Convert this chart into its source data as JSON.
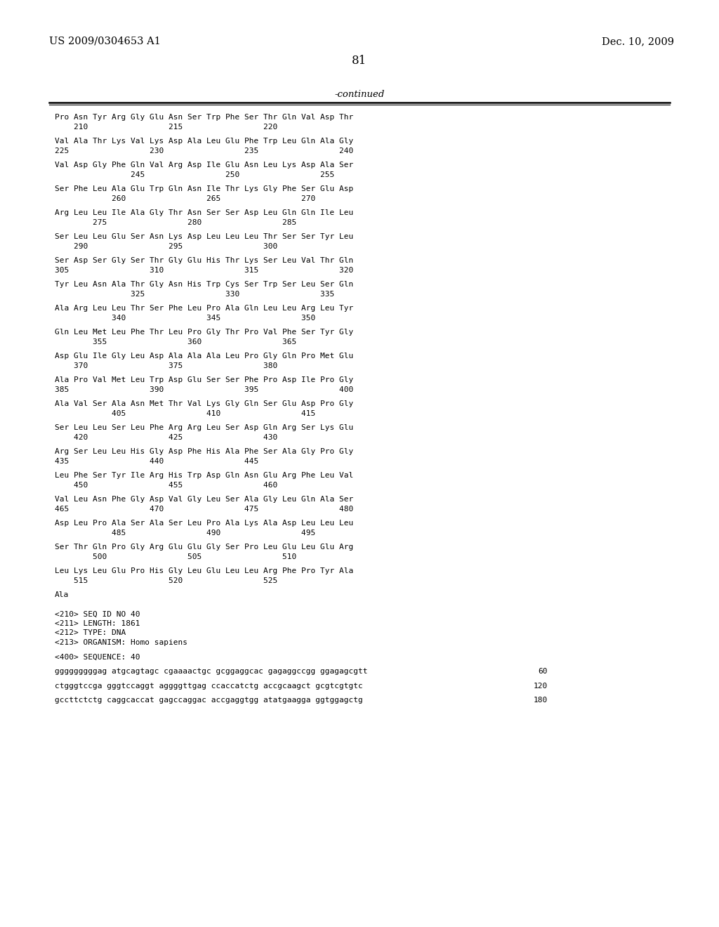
{
  "background_color": "#ffffff",
  "header_left": "US 2009/0304653 A1",
  "header_right": "Dec. 10, 2009",
  "page_number": "81",
  "continued_label": "-continued",
  "body_lines": [
    "Pro Asn Tyr Arg Gly Glu Asn Ser Trp Phe Ser Thr Gln Val Asp Thr",
    "    210                 215                 220",
    "",
    "Val Ala Thr Lys Val Lys Asp Ala Leu Glu Phe Trp Leu Gln Ala Gly",
    "225                 230                 235                 240",
    "",
    "Val Asp Gly Phe Gln Val Arg Asp Ile Glu Asn Leu Lys Asp Ala Ser",
    "                245                 250                 255",
    "",
    "Ser Phe Leu Ala Glu Trp Gln Asn Ile Thr Lys Gly Phe Ser Glu Asp",
    "            260                 265                 270",
    "",
    "Arg Leu Leu Ile Ala Gly Thr Asn Ser Ser Asp Leu Gln Gln Ile Leu",
    "        275                 280                 285",
    "",
    "Ser Leu Leu Glu Ser Asn Lys Asp Leu Leu Leu Thr Ser Ser Tyr Leu",
    "    290                 295                 300",
    "",
    "Ser Asp Ser Gly Ser Thr Gly Glu His Thr Lys Ser Leu Val Thr Gln",
    "305                 310                 315                 320",
    "",
    "Tyr Leu Asn Ala Thr Gly Asn His Trp Cys Ser Trp Ser Leu Ser Gln",
    "                325                 330                 335",
    "",
    "Ala Arg Leu Leu Thr Ser Phe Leu Pro Ala Gln Leu Leu Arg Leu Tyr",
    "            340                 345                 350",
    "",
    "Gln Leu Met Leu Phe Thr Leu Pro Gly Thr Pro Val Phe Ser Tyr Gly",
    "        355                 360                 365",
    "",
    "Asp Glu Ile Gly Leu Asp Ala Ala Ala Leu Pro Gly Gln Pro Met Glu",
    "    370                 375                 380",
    "",
    "Ala Pro Val Met Leu Trp Asp Glu Ser Ser Phe Pro Asp Ile Pro Gly",
    "385                 390                 395                 400",
    "",
    "Ala Val Ser Ala Asn Met Thr Val Lys Gly Gln Ser Glu Asp Pro Gly",
    "            405                 410                 415",
    "",
    "Ser Leu Leu Ser Leu Phe Arg Arg Leu Ser Asp Gln Arg Ser Lys Glu",
    "    420                 425                 430",
    "",
    "Arg Ser Leu Leu His Gly Asp Phe His Ala Phe Ser Ala Gly Pro Gly",
    "435                 440                 445",
    "",
    "Leu Phe Ser Tyr Ile Arg His Trp Asp Gln Asn Glu Arg Phe Leu Val",
    "    450                 455                 460",
    "",
    "Val Leu Asn Phe Gly Asp Val Gly Leu Ser Ala Gly Leu Gln Ala Ser",
    "465                 470                 475                 480",
    "",
    "Asp Leu Pro Ala Ser Ala Ser Leu Pro Ala Lys Ala Asp Leu Leu Leu",
    "            485                 490                 495",
    "",
    "Ser Thr Gln Pro Gly Arg Glu Glu Gly Ser Pro Leu Glu Leu Glu Arg",
    "        500                 505                 510",
    "",
    "Leu Lys Leu Glu Pro His Gly Leu Glu Leu Leu Arg Phe Pro Tyr Ala",
    "    515                 520                 525",
    "",
    "Ala",
    "",
    "",
    "<210> SEQ ID NO 40",
    "<211> LENGTH: 1861",
    "<212> TYPE: DNA",
    "<213> ORGANISM: Homo sapiens",
    "",
    "<400> SEQUENCE: 40",
    ""
  ],
  "dna_lines": [
    [
      "gggggggggag atgcagtagc cgaaaactgc gcggaggcac gagaggccgg ggagagcgtt",
      "60"
    ],
    [
      "",
      ""
    ],
    [
      "ctgggtccga gggtccaggt aggggttgag ccaccatctg accgcaagct gcgtcgtgtc",
      "120"
    ],
    [
      "",
      ""
    ],
    [
      "gccttctctg caggcaccat gagccaggac accgaggtgg atatgaagga ggtggagctg",
      "180"
    ]
  ],
  "font_size_header": 10.5,
  "font_size_body": 8.0,
  "font_size_page_num": 12,
  "font_size_continued": 9.5
}
